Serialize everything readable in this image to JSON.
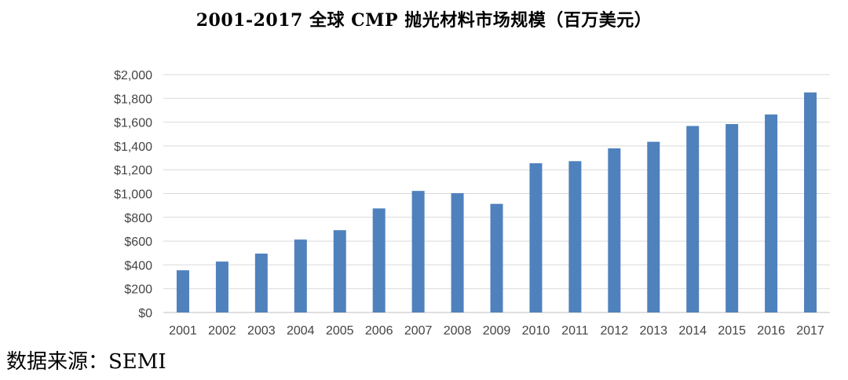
{
  "source": "数据来源：SEMI",
  "chart_data": {
    "type": "bar",
    "title": "2001-2017 全球 CMP 抛光材料市场规模（百万美元）",
    "xlabel": "",
    "ylabel": "",
    "ylim": [
      0,
      2000
    ],
    "yticks": [
      0,
      200,
      400,
      600,
      800,
      1000,
      1200,
      1400,
      1600,
      1800,
      2000
    ],
    "ytick_labels": [
      "$0",
      "$200",
      "$400",
      "$600",
      "$800",
      "$1,000",
      "$1,200",
      "$1,400",
      "$1,600",
      "$1,800",
      "$2,000"
    ],
    "categories": [
      "2001",
      "2002",
      "2003",
      "2004",
      "2005",
      "2006",
      "2007",
      "2008",
      "2009",
      "2010",
      "2011",
      "2012",
      "2013",
      "2014",
      "2015",
      "2016",
      "2017"
    ],
    "values": [
      355,
      428,
      495,
      613,
      692,
      875,
      1022,
      1003,
      913,
      1255,
      1272,
      1380,
      1435,
      1568,
      1584,
      1665,
      1850
    ],
    "bar_color": "#4f81bd",
    "grid": true,
    "legend": "none"
  }
}
